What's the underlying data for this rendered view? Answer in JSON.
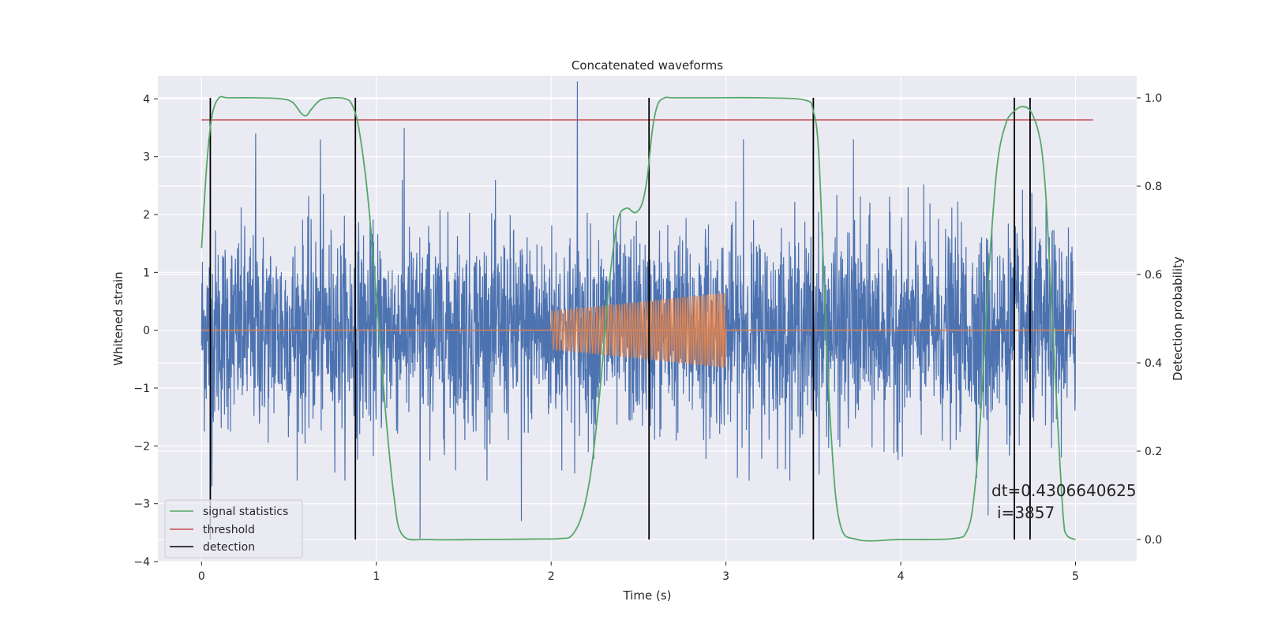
{
  "chart_data": {
    "type": "line",
    "title": "Concatenated waveforms",
    "xlabel": "Time (s)",
    "ylabel": "Whitened strain",
    "y2label": "Detection probability",
    "xlim": [
      -0.25,
      5.35
    ],
    "ylim": [
      -4.0,
      4.4
    ],
    "y2lim": [
      -0.05,
      1.05
    ],
    "xticks": [
      0,
      1,
      2,
      3,
      4,
      5
    ],
    "yticks": [
      -4,
      -3,
      -2,
      -1,
      0,
      1,
      2,
      3,
      4
    ],
    "y2ticks": [
      0.0,
      0.2,
      0.4,
      0.6,
      0.8,
      1.0
    ],
    "grid": true,
    "legend_position": "lower-left",
    "colors": {
      "background": "#eaeaf2",
      "strain": "#4c72b0",
      "injection": "#dd8452",
      "statistic": "#55a868",
      "threshold": "#c44e52",
      "detection": "#000000"
    },
    "series": [
      {
        "name": "signal statistics",
        "axis": "right",
        "x": [
          0.0,
          0.03,
          0.06,
          0.1,
          0.15,
          0.3,
          0.45,
          0.52,
          0.57,
          0.6,
          0.63,
          0.68,
          0.75,
          0.82,
          0.86,
          0.9,
          0.95,
          1.0,
          1.05,
          1.1,
          1.15,
          1.3,
          1.6,
          1.9,
          2.05,
          2.12,
          2.18,
          2.23,
          2.28,
          2.33,
          2.38,
          2.43,
          2.48,
          2.52,
          2.55,
          2.58,
          2.61,
          2.65,
          2.7,
          2.9,
          3.2,
          3.45,
          3.5,
          3.53,
          3.56,
          3.6,
          3.65,
          3.75,
          4.0,
          4.3,
          4.38,
          4.42,
          4.46,
          4.5,
          4.55,
          4.6,
          4.65,
          4.7,
          4.75,
          4.8,
          4.83,
          4.86,
          4.9,
          4.93,
          4.95,
          5.0
        ],
        "values": [
          0.66,
          0.85,
          0.96,
          1.0,
          1.0,
          1.0,
          0.998,
          0.99,
          0.965,
          0.96,
          0.975,
          0.995,
          1.0,
          0.998,
          0.985,
          0.93,
          0.78,
          0.55,
          0.3,
          0.1,
          0.01,
          0.0,
          0.0,
          0.001,
          0.002,
          0.01,
          0.06,
          0.16,
          0.34,
          0.57,
          0.72,
          0.75,
          0.74,
          0.76,
          0.82,
          0.93,
          0.985,
          1.0,
          1.0,
          1.0,
          1.0,
          0.995,
          0.97,
          0.88,
          0.6,
          0.25,
          0.04,
          0.0,
          0.0,
          0.002,
          0.02,
          0.1,
          0.3,
          0.58,
          0.84,
          0.94,
          0.97,
          0.98,
          0.965,
          0.9,
          0.78,
          0.55,
          0.25,
          0.05,
          0.01,
          0.0
        ]
      },
      {
        "name": "threshold",
        "axis": "right",
        "x": [
          0.0,
          5.1
        ],
        "values": [
          0.95,
          0.95
        ]
      },
      {
        "name": "detection",
        "axis": "right",
        "type": "vlines",
        "x": [
          0.05,
          0.88,
          2.56,
          3.5,
          4.65,
          4.74
        ],
        "ymin": 0.0,
        "ymax": 1.0
      },
      {
        "name": "",
        "axis": "left",
        "description": "whitened strain noise",
        "x_range": [
          0.0,
          5.0
        ],
        "envelope_typical": 1.6,
        "extreme_peaks_x": [
          0.06,
          0.31,
          0.68,
          1.16,
          1.25,
          1.83,
          2.15,
          3.1,
          3.73,
          4.5
        ],
        "extreme_peaks_values": [
          -2.7,
          3.4,
          3.3,
          3.5,
          -3.6,
          -3.3,
          4.3,
          3.3,
          3.3,
          -3.2
        ]
      },
      {
        "name": "",
        "axis": "left",
        "description": "injected chirp waveform",
        "x_range": [
          2.0,
          3.0
        ],
        "amplitude_start": 0.33,
        "amplitude_end": 0.65,
        "baseline_x_range": [
          0.0,
          5.0
        ],
        "baseline_value": 0.0
      }
    ],
    "annotations": [
      "dt=0.4306640625",
      "i=3857"
    ]
  }
}
